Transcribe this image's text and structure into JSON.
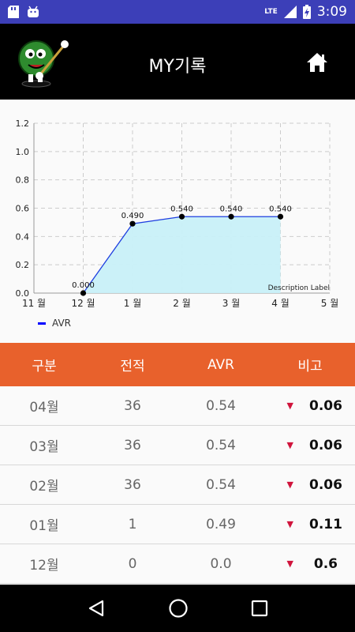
{
  "status": {
    "network": "LTE",
    "time": "3:09",
    "battery_icon": "battery-charging-icon",
    "left_icons": [
      "sd-card-icon",
      "android-icon"
    ]
  },
  "app_bar": {
    "title": "MY기록",
    "home_icon": "home-icon",
    "logo_icon": "mascot-logo"
  },
  "chart_data": {
    "type": "line",
    "x": [
      "11 월",
      "12 월",
      "1 월",
      "2 월",
      "3 월",
      "4 월",
      "5 월"
    ],
    "yticks": [
      "0.0",
      "0.2",
      "0.4",
      "0.6",
      "0.8",
      "1.0",
      "1.2"
    ],
    "ylim": [
      0,
      1.2
    ],
    "series": [
      {
        "name": "AVR",
        "points": [
          {
            "x": "12 월",
            "y": 0.0,
            "label": "0.000"
          },
          {
            "x": "1 월",
            "y": 0.49,
            "label": "0.490"
          },
          {
            "x": "2 월",
            "y": 0.54,
            "label": "0.540"
          },
          {
            "x": "3 월",
            "y": 0.54,
            "label": "0.540"
          },
          {
            "x": "4 월",
            "y": 0.54,
            "label": "0.540"
          }
        ]
      }
    ],
    "description": "Description Label",
    "fill": true,
    "grid": true,
    "legend": "bottom-left",
    "colors": {
      "line": "#1f3fe0",
      "fill": "#c8f0f8"
    }
  },
  "table": {
    "headers": [
      "구분",
      "전적",
      "AVR",
      "비고"
    ],
    "rows": [
      {
        "month": "04월",
        "record": "36",
        "avr": "0.54",
        "note": "0.06"
      },
      {
        "month": "03월",
        "record": "36",
        "avr": "0.54",
        "note": "0.06"
      },
      {
        "month": "02월",
        "record": "36",
        "avr": "0.54",
        "note": "0.06"
      },
      {
        "month": "01월",
        "record": "1",
        "avr": "0.49",
        "note": "0.11"
      },
      {
        "month": "12월",
        "record": "0",
        "avr": "0.0",
        "note": "0.6"
      }
    ],
    "header_color": "#e8612c",
    "down_color": "#d0143c"
  },
  "nav": {
    "icons": [
      "back-icon",
      "home-circle-icon",
      "recents-icon"
    ]
  }
}
